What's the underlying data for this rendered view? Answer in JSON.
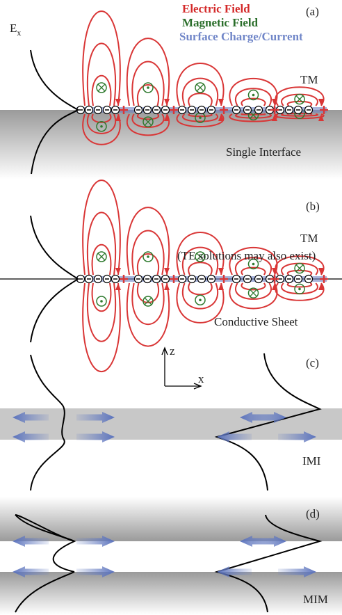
{
  "legend": {
    "electric": "Electric Field",
    "magnetic": "Magnetic Field",
    "surface": "Surface Charge/Current"
  },
  "panel_a": {
    "label": "(a)",
    "field": {
      "main": "E",
      "sub": "x"
    },
    "mode": "TM",
    "caption": "Single Interface"
  },
  "panel_b": {
    "label": "(b)",
    "mode": "TM",
    "note": "(TE solutions may also exist)",
    "caption": "Conductive Sheet"
  },
  "axes": {
    "z": "z",
    "x": "x"
  },
  "panel_c": {
    "label": "(c)",
    "caption": "IMI"
  },
  "panel_d": {
    "label": "(d)",
    "caption": "MIM"
  }
}
